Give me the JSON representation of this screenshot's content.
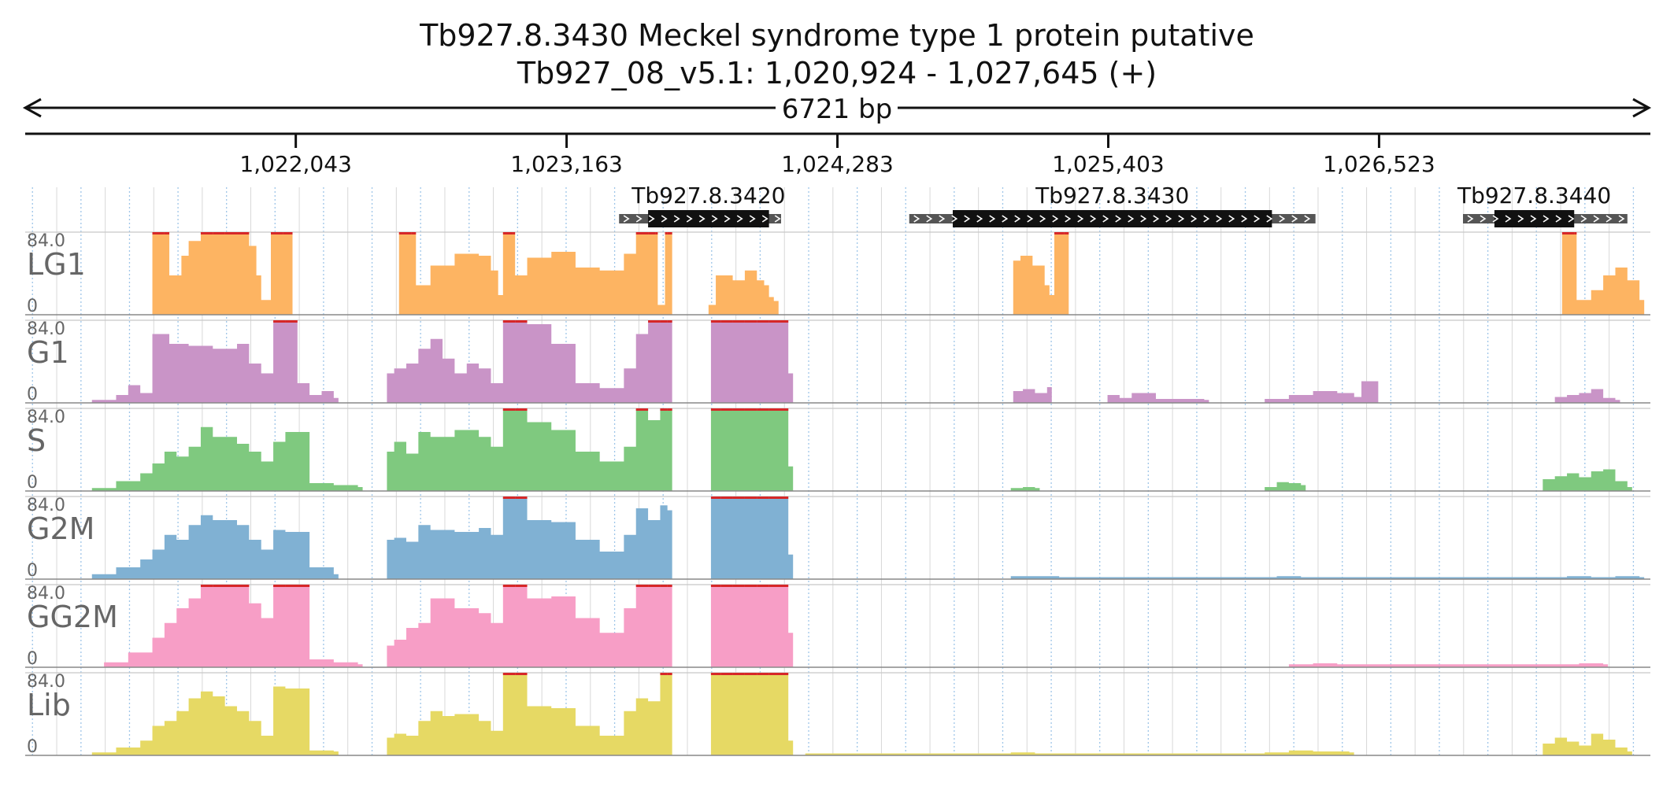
{
  "header": {
    "title": "Tb927.8.3430  Meckel syndrome type 1 protein  putative",
    "location": "Tb927_08_v5.1: 1,020,924 - 1,027,645 (+)",
    "span_label": "6721 bp"
  },
  "chart_data": {
    "type": "area",
    "region": {
      "start": 1020924,
      "end": 1027645
    },
    "x_ticks": [
      {
        "pos": 1022043,
        "label": "1,022,043"
      },
      {
        "pos": 1023163,
        "label": "1,023,163"
      },
      {
        "pos": 1024283,
        "label": "1,024,283"
      },
      {
        "pos": 1025403,
        "label": "1,025,403"
      },
      {
        "pos": 1026523,
        "label": "1,026,523"
      }
    ],
    "genes": [
      {
        "name": "Tb927.8.3420",
        "start": 1023380,
        "end": 1024050,
        "cds_start": 1023500,
        "cds_end": 1024000
      },
      {
        "name": "Tb927.8.3430",
        "start": 1024580,
        "end": 1026260,
        "cds_start": 1024760,
        "cds_end": 1026080
      },
      {
        "name": "Tb927.8.3440",
        "start": 1026870,
        "end": 1027550,
        "cds_start": 1027000,
        "cds_end": 1027330
      }
    ],
    "y_max_label": "84.0",
    "y_min_label": "0",
    "ylim": [
      0,
      84
    ],
    "clip_color": "#d62728",
    "tracks": [
      {
        "name": "LG1",
        "color": "#fdb462",
        "segments": [
          {
            "x": [
              1021450,
              1021500,
              1021520,
              1021570,
              1021600,
              1021650,
              1021700,
              1021750,
              1021800,
              1021850,
              1021880,
              1021900,
              1021940,
              1021990,
              1022010
            ],
            "y": [
              84,
              84,
              40,
              60,
              75,
              84,
              84,
              84,
              84,
              70,
              40,
              15,
              84,
              84,
              84
            ]
          },
          {
            "x": [
              1022470,
              1022520,
              1022540,
              1022600,
              1022700,
              1022800,
              1022850,
              1022880,
              1022900,
              1022940,
              1022950,
              1023000,
              1023100,
              1023200,
              1023300,
              1023400,
              1023450,
              1023500,
              1023530,
              1023540,
              1023570,
              1023580
            ],
            "y": [
              84,
              84,
              30,
              50,
              62,
              60,
              45,
              20,
              84,
              84,
              40,
              58,
              64,
              48,
              45,
              62,
              84,
              84,
              84,
              10,
              84,
              84
            ]
          },
          {
            "x": [
              1023750,
              1023780,
              1023850,
              1023900,
              1023950,
              1023980,
              1024000,
              1024020
            ],
            "y": [
              10,
              40,
              35,
              45,
              35,
              30,
              18,
              14
            ]
          },
          {
            "x": [
              1025010,
              1025040,
              1025090,
              1025140,
              1025160,
              1025180,
              1025220
            ],
            "y": [
              55,
              60,
              50,
              30,
              20,
              84,
              84
            ]
          },
          {
            "x": [
              1027280,
              1027330,
              1027340,
              1027400,
              1027450,
              1027500,
              1027550,
              1027600
            ],
            "y": [
              84,
              84,
              15,
              25,
              40,
              48,
              35,
              15
            ]
          }
        ]
      },
      {
        "name": "G1",
        "color": "#c994c7",
        "segments": [
          {
            "x": [
              1021200,
              1021300,
              1021350,
              1021400,
              1021450,
              1021520,
              1021600,
              1021700,
              1021800,
              1021850,
              1021900,
              1021950,
              1022000,
              1022050,
              1022100,
              1022150,
              1022200
            ],
            "y": [
              3,
              8,
              18,
              10,
              70,
              60,
              58,
              55,
              60,
              40,
              30,
              84,
              84,
              20,
              8,
              12,
              5
            ]
          },
          {
            "x": [
              1022420,
              1022450,
              1022500,
              1022550,
              1022600,
              1022650,
              1022700,
              1022750,
              1022800,
              1022850,
              1022900,
              1022950,
              1023000,
              1023100,
              1023200,
              1023300,
              1023400,
              1023450,
              1023500,
              1023550,
              1023580
            ],
            "y": [
              30,
              35,
              40,
              55,
              65,
              45,
              30,
              40,
              35,
              20,
              84,
              84,
              80,
              60,
              20,
              15,
              35,
              70,
              84,
              84,
              84
            ]
          },
          {
            "x": [
              1023760,
              1023800,
              1023850,
              1023900,
              1023950,
              1024000,
              1024050,
              1024080
            ],
            "y": [
              84,
              84,
              84,
              84,
              84,
              84,
              84,
              30
            ]
          },
          {
            "x": [
              1025010,
              1025050,
              1025100,
              1025150
            ],
            "y": [
              12,
              14,
              10,
              16
            ]
          },
          {
            "x": [
              1025400,
              1025450,
              1025500,
              1025600,
              1025700,
              1025800
            ],
            "y": [
              8,
              5,
              10,
              4,
              4,
              3
            ]
          },
          {
            "x": [
              1026050,
              1026150,
              1026250,
              1026350,
              1026420,
              1026450,
              1026500
            ],
            "y": [
              4,
              8,
              12,
              10,
              6,
              22,
              22
            ]
          },
          {
            "x": [
              1027250,
              1027300,
              1027350,
              1027400,
              1027450,
              1027500
            ],
            "y": [
              6,
              8,
              10,
              14,
              5,
              3
            ]
          }
        ]
      },
      {
        "name": "S",
        "color": "#7fc97f",
        "segments": [
          {
            "x": [
              1021200,
              1021300,
              1021400,
              1021450,
              1021500,
              1021550,
              1021600,
              1021650,
              1021700,
              1021800,
              1021850,
              1021900,
              1021950,
              1022000,
              1022100,
              1022200,
              1022300
            ],
            "y": [
              3,
              10,
              18,
              28,
              40,
              35,
              45,
              65,
              55,
              48,
              40,
              30,
              50,
              60,
              8,
              6,
              4
            ]
          },
          {
            "x": [
              1022420,
              1022450,
              1022500,
              1022550,
              1022600,
              1022700,
              1022800,
              1022850,
              1022900,
              1022950,
              1023000,
              1023100,
              1023200,
              1023300,
              1023400,
              1023450,
              1023500,
              1023550,
              1023580
            ],
            "y": [
              40,
              50,
              38,
              60,
              55,
              62,
              55,
              45,
              84,
              84,
              70,
              62,
              40,
              30,
              45,
              84,
              72,
              84,
              84
            ]
          },
          {
            "x": [
              1023760,
              1023800,
              1023850,
              1023900,
              1023950,
              1024000,
              1024050,
              1024080
            ],
            "y": [
              84,
              84,
              84,
              84,
              84,
              84,
              84,
              25
            ]
          },
          {
            "x": [
              1025000,
              1025050,
              1025100
            ],
            "y": [
              3,
              4,
              3
            ]
          },
          {
            "x": [
              1026050,
              1026100,
              1026150,
              1026200
            ],
            "y": [
              4,
              9,
              8,
              6
            ]
          },
          {
            "x": [
              1027200,
              1027250,
              1027300,
              1027350,
              1027400,
              1027450,
              1027500,
              1027550
            ],
            "y": [
              12,
              15,
              18,
              14,
              20,
              22,
              10,
              4
            ]
          }
        ]
      },
      {
        "name": "G2M",
        "color": "#80b1d3",
        "segments": [
          {
            "x": [
              1021200,
              1021300,
              1021400,
              1021450,
              1021500,
              1021550,
              1021600,
              1021650,
              1021700,
              1021800,
              1021850,
              1021900,
              1021950,
              1022000,
              1022100,
              1022200
            ],
            "y": [
              5,
              12,
              20,
              30,
              45,
              40,
              55,
              65,
              60,
              55,
              40,
              30,
              50,
              48,
              12,
              5
            ]
          },
          {
            "x": [
              1022420,
              1022450,
              1022500,
              1022550,
              1022600,
              1022700,
              1022800,
              1022850,
              1022900,
              1022950,
              1023000,
              1023100,
              1023200,
              1023300,
              1023400,
              1023450,
              1023500,
              1023550,
              1023580
            ],
            "y": [
              40,
              42,
              38,
              55,
              50,
              48,
              52,
              45,
              84,
              84,
              60,
              58,
              40,
              28,
              45,
              72,
              60,
              75,
              70
            ]
          },
          {
            "x": [
              1023760,
              1023800,
              1023850,
              1023900,
              1023950,
              1024000,
              1024050,
              1024080
            ],
            "y": [
              84,
              84,
              84,
              84,
              84,
              84,
              84,
              25
            ]
          },
          {
            "x": [
              1025000,
              1025100,
              1025200,
              1026100,
              1026200,
              1027300,
              1027400,
              1027500,
              1027600
            ],
            "y": [
              3,
              3,
              2,
              3,
              2,
              3,
              2,
              3,
              2
            ]
          }
        ]
      },
      {
        "name": "GG2M",
        "color": "#f79ec6",
        "segments": [
          {
            "x": [
              1021250,
              1021350,
              1021450,
              1021500,
              1021550,
              1021600,
              1021650,
              1021700,
              1021800,
              1021850,
              1021900,
              1021950,
              1022000,
              1022100,
              1022200,
              1022300
            ],
            "y": [
              5,
              15,
              30,
              45,
              60,
              70,
              84,
              84,
              84,
              65,
              50,
              84,
              84,
              8,
              5,
              3
            ]
          },
          {
            "x": [
              1022420,
              1022450,
              1022500,
              1022550,
              1022600,
              1022700,
              1022800,
              1022850,
              1022900,
              1022950,
              1023000,
              1023100,
              1023200,
              1023300,
              1023400,
              1023450,
              1023500,
              1023550,
              1023580
            ],
            "y": [
              22,
              28,
              40,
              45,
              70,
              60,
              55,
              45,
              84,
              84,
              70,
              72,
              50,
              35,
              60,
              84,
              84,
              84,
              84
            ]
          },
          {
            "x": [
              1023760,
              1023800,
              1023850,
              1023900,
              1023950,
              1024000,
              1024050,
              1024080
            ],
            "y": [
              84,
              84,
              84,
              84,
              84,
              84,
              84,
              35
            ]
          },
          {
            "x": [
              1026150,
              1026250,
              1026350,
              1027350,
              1027450
            ],
            "y": [
              3,
              4,
              3,
              4,
              3
            ]
          }
        ]
      },
      {
        "name": "Lib",
        "color": "#e6d964",
        "segments": [
          {
            "x": [
              1021200,
              1021300,
              1021400,
              1021450,
              1021500,
              1021550,
              1021600,
              1021650,
              1021700,
              1021750,
              1021800,
              1021850,
              1021900,
              1021950,
              1022000,
              1022100,
              1022200
            ],
            "y": [
              3,
              8,
              15,
              30,
              35,
              45,
              58,
              65,
              60,
              50,
              45,
              35,
              20,
              70,
              68,
              5,
              4
            ]
          },
          {
            "x": [
              1022420,
              1022450,
              1022500,
              1022550,
              1022600,
              1022650,
              1022700,
              1022800,
              1022850,
              1022900,
              1022950,
              1023000,
              1023100,
              1023200,
              1023300,
              1023400,
              1023450,
              1023500,
              1023550,
              1023580
            ],
            "y": [
              18,
              22,
              20,
              35,
              45,
              40,
              42,
              35,
              25,
              84,
              84,
              50,
              48,
              30,
              20,
              45,
              58,
              55,
              84,
              84
            ]
          },
          {
            "x": [
              1023760,
              1023800,
              1023850,
              1023900,
              1023950,
              1024000,
              1024050,
              1024080
            ],
            "y": [
              84,
              84,
              84,
              84,
              84,
              84,
              84,
              15
            ]
          },
          {
            "x": [
              1024150,
              1024200,
              1025000,
              1025100,
              1026050,
              1026150,
              1026250,
              1026400
            ],
            "y": [
              2,
              2,
              3,
              2,
              3,
              5,
              4,
              3
            ]
          },
          {
            "x": [
              1027200,
              1027250,
              1027300,
              1027350,
              1027400,
              1027450,
              1027500,
              1027550
            ],
            "y": [
              12,
              18,
              14,
              10,
              22,
              16,
              8,
              4
            ]
          }
        ]
      }
    ]
  }
}
